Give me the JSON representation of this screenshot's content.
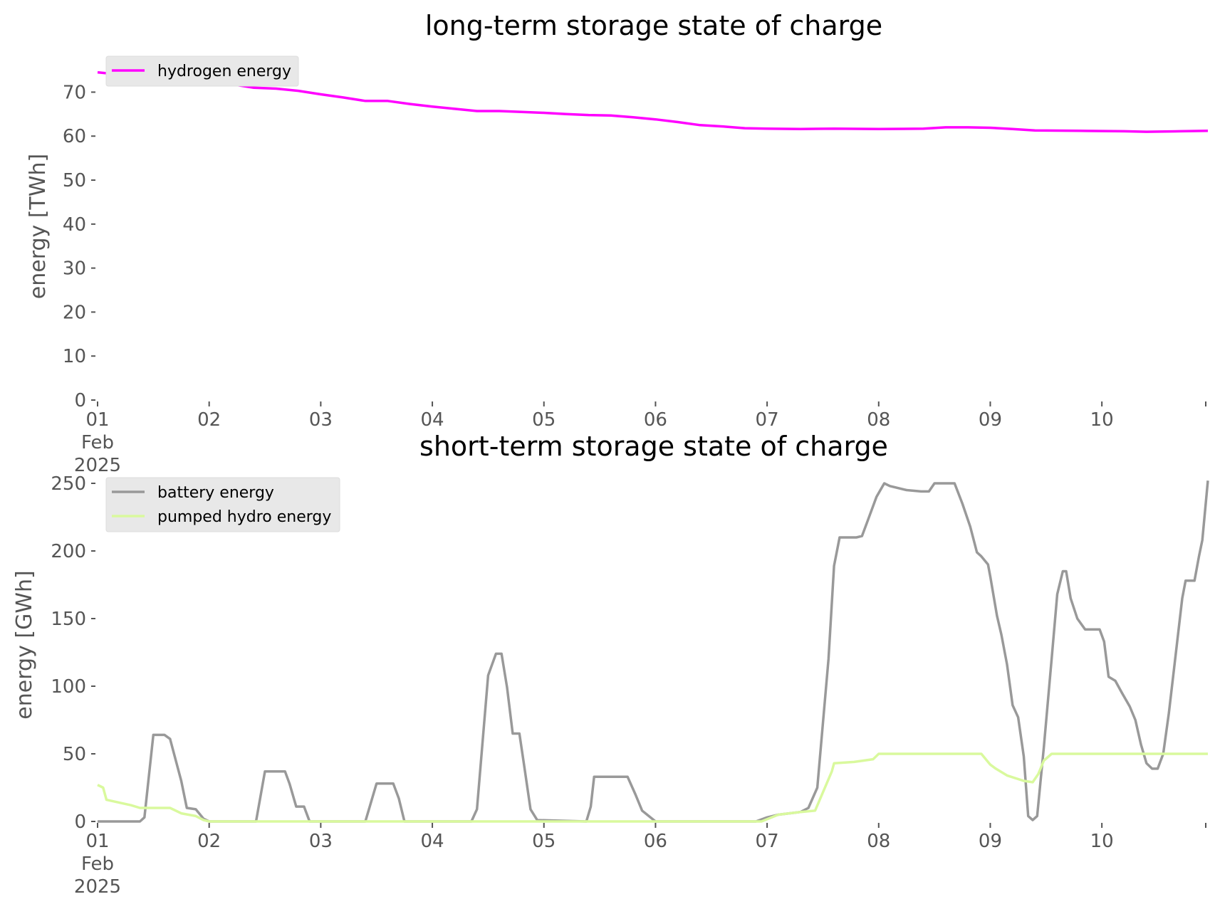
{
  "chart_data": [
    {
      "type": "line",
      "title": "long-term storage state of charge",
      "xlabel": "",
      "ylabel": "energy [TWh]",
      "ylim": [
        0,
        78
      ],
      "yticks": [
        0,
        10,
        20,
        30,
        40,
        50,
        60,
        70
      ],
      "x_ticks": [
        "01\nFeb\n2025",
        "02",
        "03",
        "04",
        "05",
        "06",
        "07",
        "08",
        "09",
        "10"
      ],
      "xlim_days": [
        1,
        10.95
      ],
      "grid": false,
      "legend_position": "top-left",
      "series": [
        {
          "name": "hydrogen energy",
          "color": "#ff00ff",
          "x_days": [
            1.0,
            1.2,
            1.5,
            1.8,
            2.0,
            2.2,
            2.4,
            2.6,
            2.8,
            3.0,
            3.2,
            3.4,
            3.6,
            3.8,
            4.0,
            4.2,
            4.4,
            4.6,
            4.8,
            5.0,
            5.2,
            5.4,
            5.6,
            5.8,
            6.0,
            6.2,
            6.4,
            6.6,
            6.8,
            7.0,
            7.3,
            7.6,
            8.0,
            8.4,
            8.6,
            8.8,
            9.0,
            9.2,
            9.4,
            9.8,
            10.2,
            10.4,
            10.7,
            10.95
          ],
          "values": [
            74.5,
            74.0,
            73.5,
            73.0,
            72.5,
            71.8,
            71.0,
            70.8,
            70.3,
            69.5,
            68.8,
            68.0,
            68.0,
            67.3,
            66.7,
            66.2,
            65.7,
            65.7,
            65.5,
            65.3,
            65.0,
            64.8,
            64.7,
            64.3,
            63.8,
            63.2,
            62.5,
            62.2,
            61.8,
            61.7,
            61.6,
            61.7,
            61.6,
            61.7,
            62.0,
            62.0,
            61.9,
            61.6,
            61.3,
            61.2,
            61.1,
            61.0,
            61.1,
            61.2
          ]
        }
      ]
    },
    {
      "type": "line",
      "title": "short-term storage state of charge",
      "xlabel": "",
      "ylabel": "energy [GWh]",
      "ylim": [
        0,
        260
      ],
      "yticks": [
        0,
        50,
        100,
        150,
        200,
        250
      ],
      "x_ticks": [
        "01\nFeb\n2025",
        "02",
        "03",
        "04",
        "05",
        "06",
        "07",
        "08",
        "09",
        "10"
      ],
      "xlim_days": [
        1,
        10.95
      ],
      "grid": false,
      "legend_position": "top-left",
      "series": [
        {
          "name": "battery energy",
          "color": "#999999",
          "x_days": [
            1.0,
            1.38,
            1.42,
            1.5,
            1.6,
            1.65,
            1.75,
            1.8,
            1.88,
            1.95,
            2.0,
            2.42,
            2.5,
            2.68,
            2.72,
            2.78,
            2.85,
            2.9,
            3.4,
            3.5,
            3.65,
            3.7,
            3.75,
            4.35,
            4.4,
            4.5,
            4.57,
            4.62,
            4.67,
            4.72,
            4.78,
            4.82,
            4.88,
            4.94,
            5.38,
            5.42,
            5.45,
            5.75,
            5.82,
            5.88,
            6.0,
            6.9,
            7.0,
            7.1,
            7.3,
            7.37,
            7.45,
            7.55,
            7.6,
            7.65,
            7.8,
            7.85,
            7.9,
            7.98,
            8.05,
            8.1,
            8.25,
            8.38,
            8.45,
            8.5,
            8.68,
            8.75,
            8.82,
            8.88,
            8.92,
            8.98,
            9.0,
            9.06,
            9.1,
            9.15,
            9.2,
            9.25,
            9.3,
            9.34,
            9.38,
            9.42,
            9.48,
            9.55,
            9.6,
            9.65,
            9.68,
            9.72,
            9.78,
            9.85,
            9.98,
            10.02,
            10.06,
            10.12,
            10.18,
            10.25,
            10.3,
            10.35,
            10.4,
            10.45,
            10.5,
            10.55,
            10.6,
            10.72,
            10.75,
            10.78,
            10.83,
            10.87,
            10.9,
            10.95
          ],
          "values": [
            0,
            0,
            3,
            64,
            64,
            61,
            30,
            10,
            9,
            2,
            0,
            0,
            37,
            37,
            28,
            11,
            11,
            0,
            0,
            28,
            28,
            17,
            0,
            0,
            9,
            108,
            124,
            124,
            99,
            65,
            65,
            43,
            9,
            1,
            0,
            11,
            33,
            33,
            20,
            8,
            0,
            0,
            3,
            5,
            7,
            10,
            25,
            120,
            189,
            210,
            210,
            211,
            222,
            240,
            250,
            248,
            245,
            244,
            244,
            250,
            250,
            235,
            218,
            199,
            196,
            190,
            181,
            152,
            138,
            116,
            86,
            77,
            48,
            4,
            1,
            4,
            55,
            120,
            168,
            185,
            185,
            165,
            150,
            142,
            142,
            133,
            107,
            104,
            95,
            85,
            75,
            57,
            43,
            39,
            39,
            50,
            80,
            165,
            178,
            178,
            178,
            196,
            208,
            252
          ]
        },
        {
          "name": "pumped hydro energy",
          "color": "#d9f99d",
          "x_days": [
            1.0,
            1.05,
            1.08,
            1.3,
            1.38,
            1.65,
            1.75,
            1.88,
            1.95,
            2.0,
            6.95,
            7.1,
            7.3,
            7.43,
            7.58,
            7.6,
            7.78,
            7.95,
            8.0,
            8.92,
            9.0,
            9.05,
            9.15,
            9.3,
            9.38,
            9.43,
            9.48,
            9.55,
            10.95
          ],
          "values": [
            27,
            25,
            16,
            12,
            10,
            10,
            6,
            4,
            1,
            0,
            0,
            5,
            7,
            8,
            37,
            43,
            44,
            46,
            50,
            50,
            42,
            39,
            34,
            30,
            29,
            35,
            45,
            50,
            50
          ]
        }
      ]
    }
  ]
}
